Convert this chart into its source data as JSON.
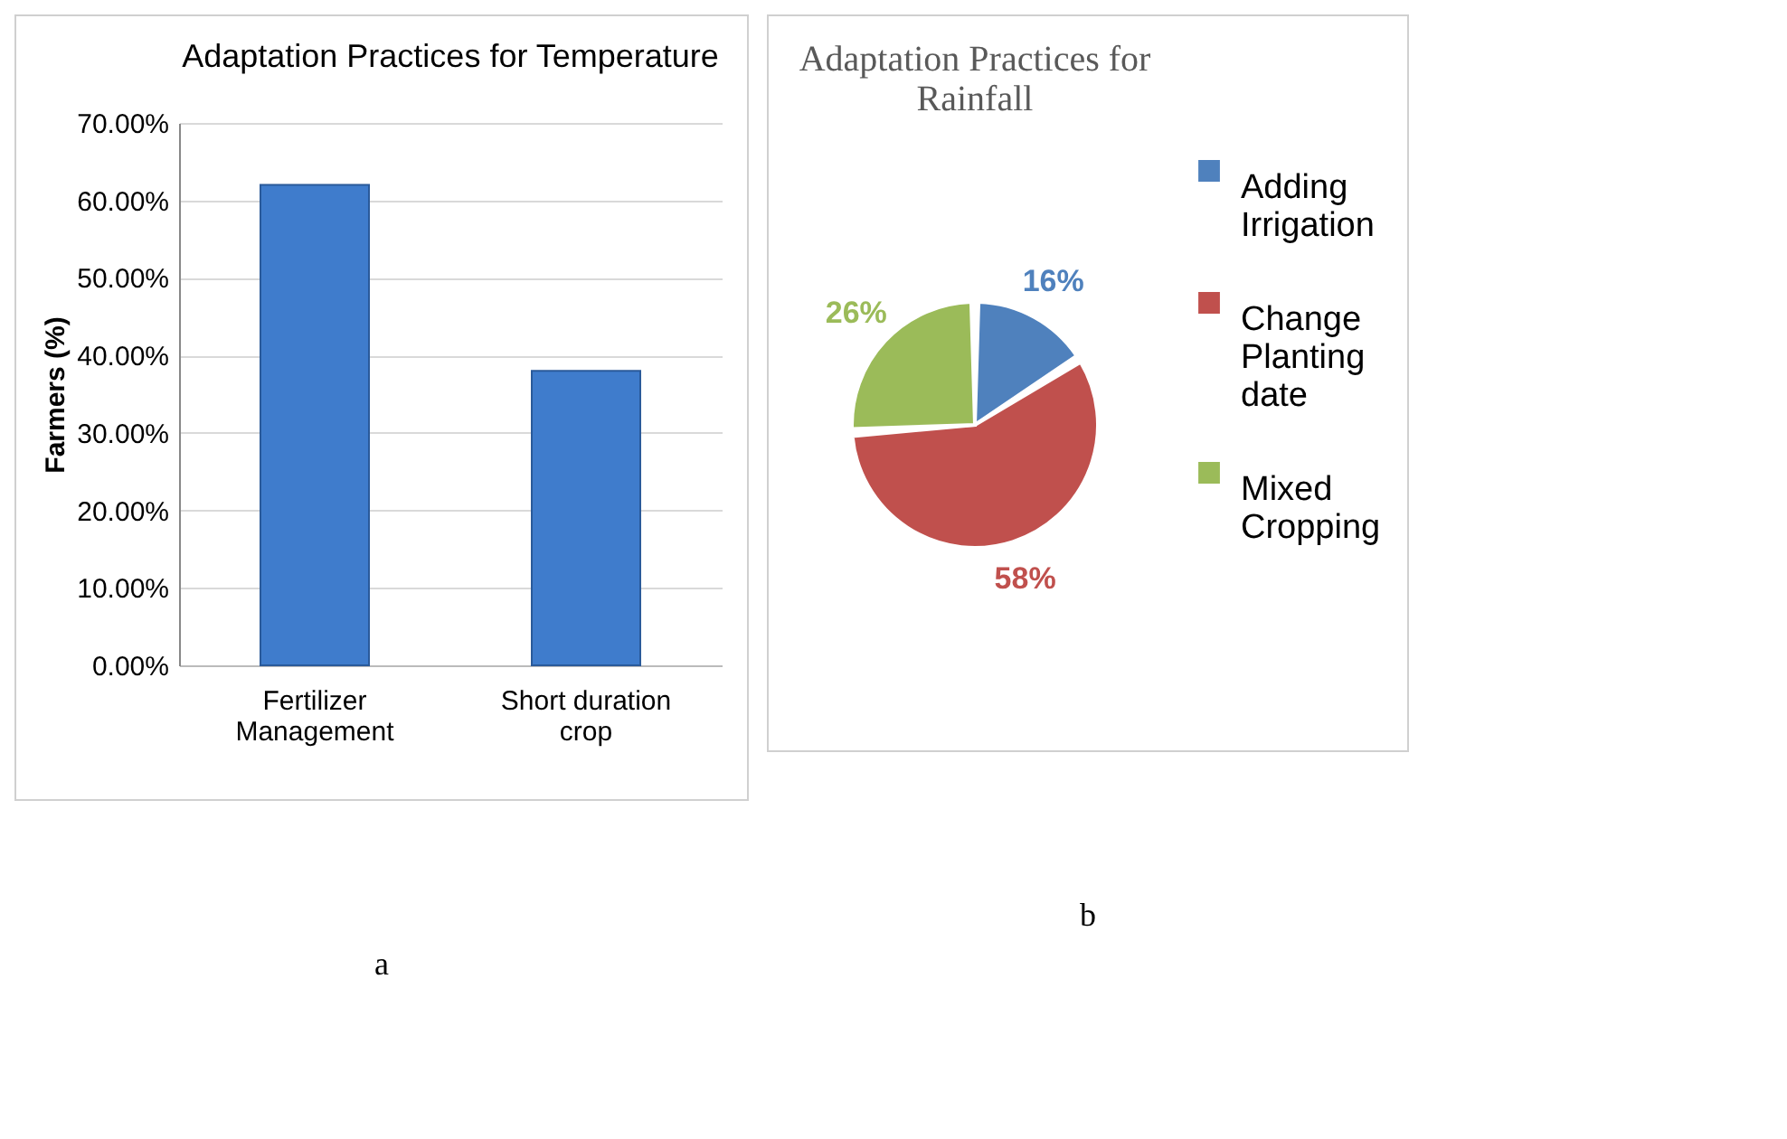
{
  "chart_data": [
    {
      "type": "bar",
      "title": "Adaptation Practices for Temperature",
      "ylabel": "Farmers (%)",
      "categories": [
        "Fertilizer Management",
        "Short duration crop"
      ],
      "values": [
        62,
        38
      ],
      "color": "#3f7ccc",
      "ylim": [
        0,
        70
      ],
      "yticks": [
        {
          "value": 0,
          "label": "0.00%"
        },
        {
          "value": 10,
          "label": "10.00%"
        },
        {
          "value": 20,
          "label": "20.00%"
        },
        {
          "value": 30,
          "label": "30.00%"
        },
        {
          "value": 40,
          "label": "40.00%"
        },
        {
          "value": 50,
          "label": "50.00%"
        },
        {
          "value": 60,
          "label": "60.00%"
        },
        {
          "value": 70,
          "label": "70.00%"
        }
      ],
      "grid": "y",
      "annotations": [
        "a"
      ]
    },
    {
      "type": "pie",
      "title": "Adaptation Practices for Rainfall",
      "categories": [
        "Adding Irrigation",
        "Change Planting date",
        "Mixed Cropping"
      ],
      "values": [
        16,
        58,
        26
      ],
      "colors": [
        "#4f81bd",
        "#c0504d",
        "#9bbb59"
      ],
      "value_labels": [
        "16%",
        "58%",
        "26%"
      ],
      "legend": "right",
      "annotations": [
        "b"
      ]
    }
  ]
}
